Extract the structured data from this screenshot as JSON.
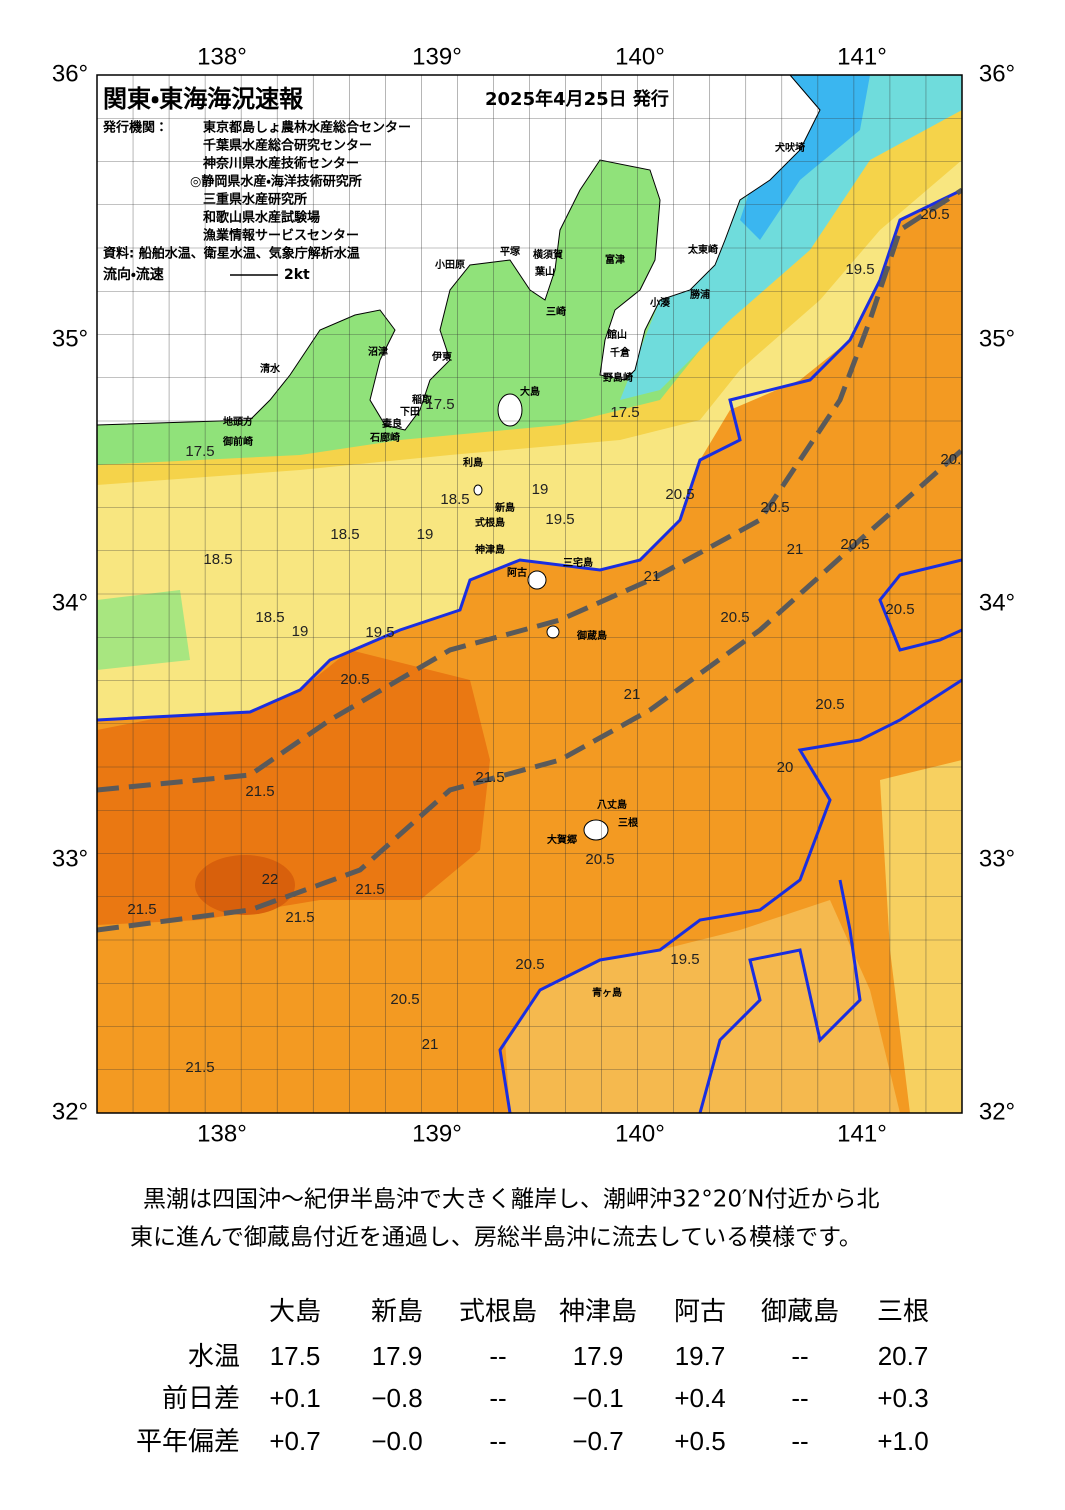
{
  "header": {
    "title": "関東・東海海況速報",
    "date": "2025年4月25日 発行",
    "issuer_label": "発行機関：",
    "issuers": [
      "東京都島しょ農林水産総合センター",
      "千葉県水産総合研究センター",
      "神奈川県水産技術センター",
      "◎静岡県水産・海洋技術研究所",
      "三重県水産研究所",
      "和歌山県水産試験場",
      "漁業情報サービスセンター"
    ],
    "sources": "資料: 船舶水温、衛星水温、気象庁解析水温",
    "flow_label": "流向・流速",
    "flow_scale": "2kt"
  },
  "map": {
    "lon_labels": [
      "138°",
      "139°",
      "140°",
      "141°"
    ],
    "lat_labels": [
      "36°",
      "35°",
      "34°",
      "33°",
      "32°"
    ],
    "place_names": [
      "大島",
      "利島",
      "新島",
      "式根島",
      "神津島",
      "三宅島",
      "阿古",
      "御蔵島",
      "八丈島",
      "三根",
      "大賀郷",
      "青ヶ島",
      "犬吠埼",
      "太東崎",
      "勝浦",
      "小湊",
      "館山",
      "千倉",
      "野島崎",
      "小田原",
      "平塚",
      "横須賀",
      "富津",
      "葉山",
      "三崎",
      "沼津",
      "伊東",
      "清水",
      "稲取",
      "下田",
      "地頭方",
      "御前崎",
      "妻良",
      "石廊崎"
    ],
    "contour_labels": [
      "17.5",
      "17.5",
      "17.5",
      "18.5",
      "18.5",
      "18.5",
      "19",
      "19.5",
      "20.5",
      "19.5",
      "20.5",
      "20.5",
      "20.5",
      "20.5",
      "20.5",
      "21",
      "21",
      "21",
      "20.5",
      "21.5",
      "21.5",
      "22",
      "21.5",
      "21.5",
      "21.5",
      "20.5",
      "21",
      "21.5",
      "20",
      "20.5",
      "19.5",
      "20.5",
      "19",
      "19.5",
      "18.5",
      "19",
      "20.5",
      "20.5"
    ]
  },
  "summary": [
    "黒潮は四国沖～紀伊半島沖で大きく離岸し、潮岬沖32°20′N付近から北",
    "東に進んで御蔵島付近を通過し、房総半島沖に流去している模様です。"
  ],
  "table": {
    "columns": [
      "大島",
      "新島",
      "式根島",
      "神津島",
      "阿古",
      "御蔵島",
      "三根"
    ],
    "rows": [
      {
        "label": "水温",
        "values": [
          "17.5",
          "17.9",
          "--",
          "17.9",
          "19.7",
          "--",
          "20.7"
        ]
      },
      {
        "label": "前日差",
        "values": [
          "+0.1",
          "−0.8",
          "--",
          "−0.1",
          "+0.4",
          "--",
          "+0.3"
        ]
      },
      {
        "label": "平年偏差",
        "values": [
          "+0.7",
          "−0.0",
          "--",
          "−0.7",
          "+0.5",
          "--",
          "+1.0"
        ]
      }
    ]
  }
}
